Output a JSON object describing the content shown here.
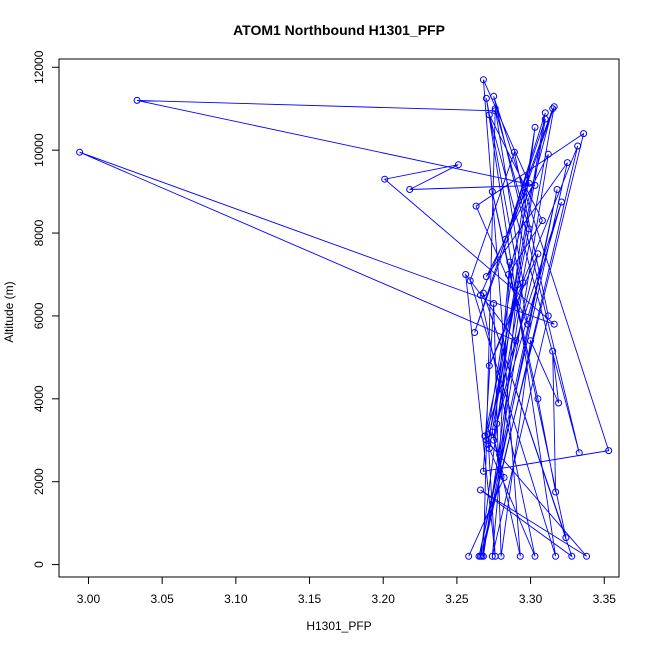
{
  "chart_data": {
    "type": "line",
    "title": "ATOM1 Northbound H1301_PFP",
    "xlabel": "H1301_PFP",
    "ylabel": "Altitude (m)",
    "xlim": [
      2.98,
      3.36
    ],
    "ylim": [
      -300,
      12200
    ],
    "x_ticks": [
      "3.00",
      "3.05",
      "3.10",
      "3.15",
      "3.20",
      "3.25",
      "3.30",
      "3.35"
    ],
    "x_tick_values": [
      3.0,
      3.05,
      3.1,
      3.15,
      3.2,
      3.25,
      3.3,
      3.35
    ],
    "y_ticks": [
      "0",
      "2000",
      "4000",
      "6000",
      "8000",
      "10000",
      "12000"
    ],
    "y_tick_values": [
      0,
      2000,
      4000,
      6000,
      8000,
      10000,
      12000
    ],
    "grid": false,
    "color": "#0000ff",
    "marker": "open-circle",
    "series": [
      {
        "x": [
          3.258,
          3.282,
          3.274,
          3.293,
          3.268,
          3.299,
          3.266,
          3.303,
          3.272,
          3.31,
          3.262,
          3.316,
          3.275,
          3.286,
          3.279,
          3.312,
          3.27,
          3.325,
          3.265,
          3.318,
          3.267,
          3.332,
          3.272,
          3.305,
          3.277,
          3.321,
          3.269,
          3.291,
          3.274,
          3.312,
          3.289,
          3.259,
          3.317,
          3.27,
          3.298,
          3.263,
          3.336,
          3.266,
          3.303,
          3.271,
          3.276,
          3.256,
          3.29,
          2.994,
          3.316,
          3.201,
          3.251,
          3.218,
          3.303,
          3.033,
          3.276,
          3.268,
          3.295,
          3.276,
          3.299,
          3.271,
          3.31,
          3.283,
          3.315,
          3.285,
          3.308,
          3.272,
          3.333,
          3.275,
          3.353,
          3.268,
          3.275,
          3.28,
          3.3,
          3.319,
          3.315,
          3.317,
          3.305,
          3.274,
          3.324,
          3.268,
          3.328,
          3.266,
          3.338,
          3.27
        ],
        "y": [
          200,
          2100,
          3200,
          200,
          11700,
          9200,
          6500,
          200,
          2800,
          10750,
          5600,
          11050,
          3000,
          7300,
          2650,
          9900,
          6950,
          9700,
          200,
          9050,
          200,
          10100,
          4800,
          7500,
          3400,
          8750,
          3100,
          6750,
          200,
          6000,
          9950,
          6850,
          200,
          11250,
          5800,
          8650,
          10400,
          200,
          10550,
          3150,
          200,
          7000,
          5400,
          9950,
          5800,
          9300,
          9650,
          9050,
          9150,
          11200,
          10950,
          200,
          6800,
          11000,
          8100,
          2900,
          10900,
          7850,
          11000,
          7000,
          8300,
          10850,
          2700,
          11300,
          2750,
          2250,
          6300,
          200,
          5400,
          3900,
          5150,
          1750,
          4000,
          9000,
          650,
          6550,
          200,
          1800,
          200,
          3000
        ]
      }
    ]
  }
}
